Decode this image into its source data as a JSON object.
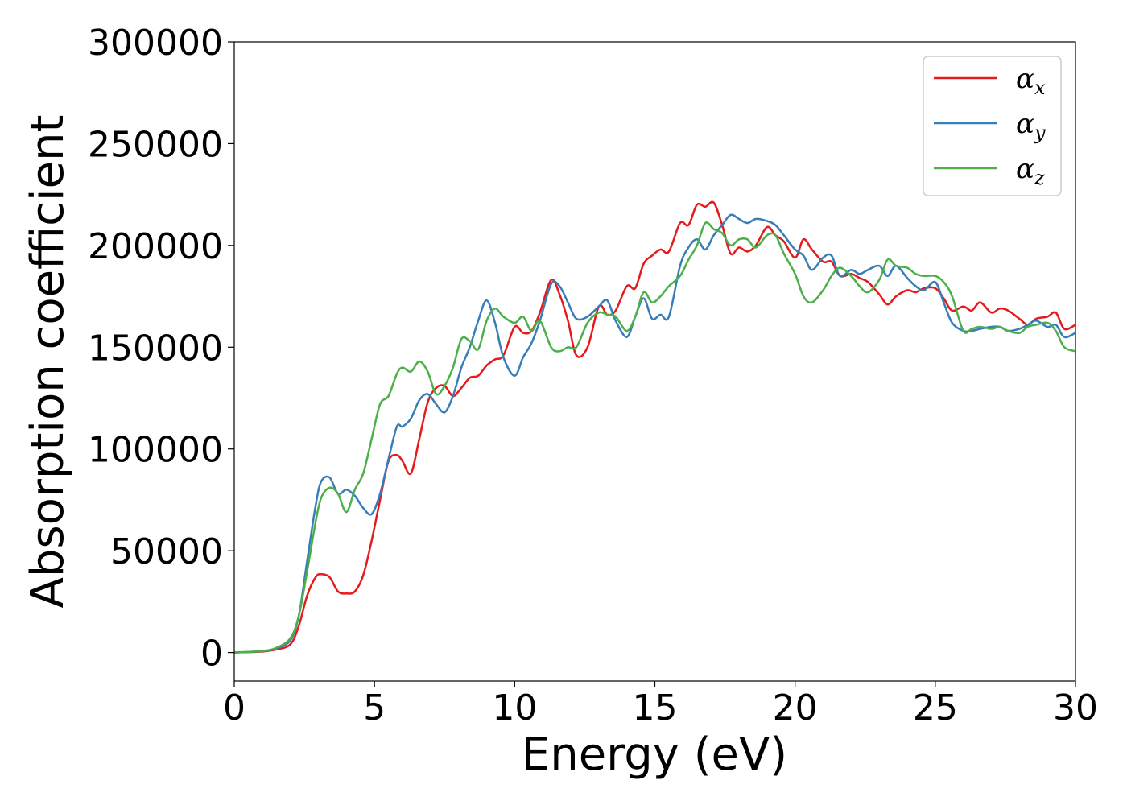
{
  "chart_data": {
    "type": "line",
    "title": "",
    "xlabel": "Energy (eV)",
    "ylabel": "Absorption coefficient",
    "xlim": [
      0,
      30
    ],
    "ylim": [
      -14000,
      300000
    ],
    "xticks": [
      0,
      5,
      10,
      15,
      20,
      25,
      30
    ],
    "yticks": [
      0,
      50000,
      100000,
      150000,
      200000,
      250000,
      300000
    ],
    "xtick_labels": [
      "0",
      "5",
      "10",
      "15",
      "20",
      "25",
      "30"
    ],
    "ytick_labels": [
      "0",
      "50000",
      "100000",
      "150000",
      "200000",
      "250000",
      "300000"
    ],
    "grid": false,
    "legend_position": "top-right",
    "series": [
      {
        "name": "α",
        "subscript": "x",
        "color": "#e41a1c",
        "x": [
          0,
          1,
          1.5,
          2,
          2.3,
          2.6,
          2.9,
          3.1,
          3.4,
          3.7,
          4,
          4.3,
          4.6,
          4.9,
          5.2,
          5.5,
          5.8,
          6,
          6.3,
          6.6,
          6.9,
          7.2,
          7.5,
          7.8,
          8.1,
          8.4,
          8.7,
          9,
          9.3,
          9.6,
          10,
          10.3,
          10.6,
          10.9,
          11.3,
          11.6,
          11.9,
          12.2,
          12.6,
          13,
          13.3,
          13.6,
          14,
          14.3,
          14.6,
          14.9,
          15.2,
          15.5,
          15.9,
          16.2,
          16.5,
          16.8,
          17.1,
          17.4,
          17.7,
          18,
          18.3,
          18.6,
          19,
          19.3,
          19.6,
          20,
          20.3,
          20.6,
          21,
          21.3,
          21.6,
          22,
          22.3,
          22.6,
          23,
          23.3,
          23.6,
          24,
          24.3,
          24.6,
          25,
          25.3,
          25.6,
          26,
          26.3,
          26.6,
          27,
          27.3,
          27.6,
          28,
          28.3,
          28.6,
          29,
          29.3,
          29.6,
          30
        ],
        "y": [
          0,
          500,
          1500,
          4000,
          13000,
          28000,
          37000,
          38500,
          37000,
          30000,
          29000,
          30000,
          38000,
          55000,
          75000,
          94000,
          97000,
          94000,
          88000,
          105000,
          123000,
          130000,
          131000,
          126000,
          130000,
          135000,
          136000,
          141000,
          144000,
          146000,
          160000,
          157000,
          158000,
          167000,
          183000,
          176000,
          163000,
          146000,
          150000,
          170000,
          166000,
          168000,
          180000,
          179000,
          191000,
          195000,
          198000,
          197000,
          211000,
          210000,
          220000,
          219000,
          221000,
          210000,
          196000,
          199000,
          197000,
          200000,
          209000,
          205000,
          202000,
          194000,
          203000,
          198000,
          192000,
          192000,
          185000,
          186000,
          184000,
          182000,
          176000,
          171000,
          175000,
          178000,
          177000,
          179000,
          179000,
          174000,
          168000,
          170000,
          168000,
          172000,
          167000,
          169000,
          168000,
          164000,
          161000,
          164000,
          165000,
          167000,
          159000,
          161000
        ]
      },
      {
        "name": "α",
        "subscript": "y",
        "color": "#377eb8",
        "x": [
          0,
          1,
          1.5,
          2,
          2.3,
          2.6,
          2.9,
          3.1,
          3.4,
          3.7,
          4,
          4.3,
          4.6,
          4.9,
          5.2,
          5.5,
          5.8,
          6,
          6.3,
          6.6,
          6.9,
          7.2,
          7.5,
          7.8,
          8.1,
          8.4,
          8.7,
          9,
          9.3,
          9.6,
          10,
          10.3,
          10.6,
          10.9,
          11.3,
          11.6,
          11.9,
          12.2,
          12.6,
          13,
          13.3,
          13.6,
          14,
          14.3,
          14.6,
          14.9,
          15.2,
          15.5,
          15.9,
          16.2,
          16.5,
          16.8,
          17.1,
          17.4,
          17.7,
          18,
          18.3,
          18.6,
          19,
          19.3,
          19.6,
          20,
          20.3,
          20.6,
          21,
          21.3,
          21.6,
          22,
          22.3,
          22.6,
          23,
          23.3,
          23.6,
          24,
          24.3,
          24.6,
          25,
          25.3,
          25.6,
          26,
          26.3,
          26.6,
          27,
          27.3,
          27.6,
          28,
          28.3,
          28.6,
          29,
          29.3,
          29.6,
          30
        ],
        "y": [
          0,
          700,
          2000,
          6000,
          18000,
          45000,
          72000,
          84000,
          86000,
          78000,
          80000,
          77000,
          71000,
          68000,
          78000,
          95000,
          111000,
          111000,
          115000,
          124000,
          127000,
          122000,
          118000,
          126000,
          140000,
          150000,
          163000,
          173000,
          162000,
          145000,
          136000,
          145000,
          152000,
          163000,
          181000,
          180000,
          172000,
          164000,
          165000,
          170000,
          173000,
          163000,
          155000,
          165000,
          174000,
          164000,
          166000,
          165000,
          190000,
          199000,
          203000,
          198000,
          205000,
          210000,
          215000,
          213000,
          211000,
          213000,
          212000,
          210000,
          205000,
          198000,
          195000,
          188000,
          194000,
          195000,
          185000,
          188000,
          186000,
          188000,
          190000,
          185000,
          190000,
          184000,
          180000,
          178000,
          182000,
          172000,
          162000,
          158000,
          158000,
          159000,
          160000,
          160000,
          158000,
          159000,
          161000,
          163000,
          160000,
          161000,
          155000,
          157000
        ]
      },
      {
        "name": "α",
        "subscript": "z",
        "color": "#4daf4a",
        "x": [
          0,
          1,
          1.5,
          2,
          2.3,
          2.6,
          2.9,
          3.1,
          3.4,
          3.7,
          4,
          4.3,
          4.6,
          4.9,
          5.2,
          5.5,
          5.8,
          6,
          6.3,
          6.6,
          6.9,
          7.2,
          7.5,
          7.8,
          8.1,
          8.4,
          8.7,
          9,
          9.3,
          9.6,
          10,
          10.3,
          10.6,
          10.9,
          11.3,
          11.6,
          11.9,
          12.2,
          12.6,
          13,
          13.3,
          13.6,
          14,
          14.3,
          14.6,
          14.9,
          15.2,
          15.5,
          15.9,
          16.2,
          16.5,
          16.8,
          17.1,
          17.4,
          17.7,
          18,
          18.3,
          18.6,
          19,
          19.3,
          19.6,
          20,
          20.3,
          20.6,
          21,
          21.3,
          21.6,
          22,
          22.3,
          22.6,
          23,
          23.3,
          23.6,
          24,
          24.3,
          24.6,
          25,
          25.3,
          25.6,
          26,
          26.3,
          26.6,
          27,
          27.3,
          27.6,
          28,
          28.3,
          28.6,
          29,
          29.3,
          29.6,
          30
        ],
        "y": [
          0,
          800,
          2300,
          7000,
          18000,
          40000,
          64000,
          76000,
          81000,
          78000,
          69000,
          80000,
          88000,
          105000,
          122000,
          126000,
          137000,
          140000,
          138000,
          143000,
          138000,
          127000,
          131000,
          140000,
          154000,
          153000,
          149000,
          163000,
          169000,
          165000,
          162000,
          165000,
          158000,
          163000,
          150000,
          148000,
          150000,
          150000,
          162000,
          167000,
          166000,
          165000,
          158000,
          165000,
          177000,
          172000,
          175000,
          180000,
          185000,
          193000,
          200000,
          211000,
          208000,
          206000,
          200000,
          203000,
          203000,
          199000,
          205000,
          205000,
          196000,
          186000,
          175000,
          172000,
          178000,
          185000,
          189000,
          185000,
          180000,
          177000,
          183000,
          193000,
          190000,
          189000,
          186000,
          185000,
          185000,
          182000,
          175000,
          158000,
          159000,
          160000,
          159000,
          160000,
          158000,
          157000,
          160000,
          161000,
          162000,
          158000,
          150000,
          148000
        ]
      }
    ]
  }
}
